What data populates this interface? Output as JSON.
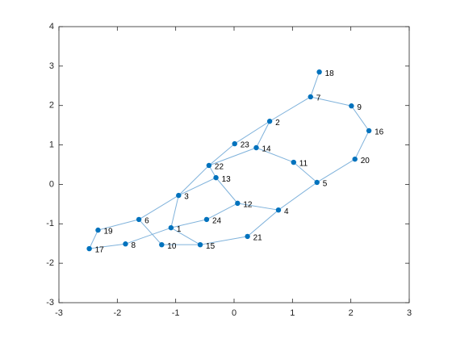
{
  "chart_data": {
    "type": "graph",
    "labels": [
      "1",
      "2",
      "3",
      "4",
      "5",
      "6",
      "7",
      "8",
      "9",
      "10",
      "11",
      "12",
      "13",
      "14",
      "15",
      "16",
      "17",
      "18",
      "19",
      "20",
      "21",
      "22",
      "23",
      "24"
    ],
    "x": [
      -1.08,
      0.61,
      -0.95,
      0.76,
      1.42,
      -1.63,
      1.31,
      -1.86,
      2.01,
      -1.24,
      1.02,
      0.06,
      -0.31,
      0.38,
      -0.58,
      2.31,
      -2.48,
      1.46,
      -2.33,
      2.07,
      0.23,
      -0.43,
      0.01,
      -0.47
    ],
    "y": [
      -1.1,
      1.6,
      -0.28,
      -0.65,
      0.05,
      -0.89,
      2.22,
      -1.51,
      1.99,
      -1.53,
      0.56,
      -0.48,
      0.17,
      0.93,
      -1.53,
      1.36,
      -1.63,
      2.85,
      -1.16,
      0.64,
      -1.32,
      0.48,
      1.03,
      -0.89
    ],
    "edges": [
      [
        18,
        7
      ],
      [
        7,
        9
      ],
      [
        9,
        16
      ],
      [
        16,
        20
      ],
      [
        20,
        5
      ],
      [
        7,
        2
      ],
      [
        2,
        23
      ],
      [
        2,
        14
      ],
      [
        14,
        11
      ],
      [
        11,
        5
      ],
      [
        14,
        22
      ],
      [
        23,
        22
      ],
      [
        22,
        3
      ],
      [
        22,
        13
      ],
      [
        13,
        3
      ],
      [
        13,
        12
      ],
      [
        12,
        4
      ],
      [
        5,
        4
      ],
      [
        4,
        21
      ],
      [
        21,
        15
      ],
      [
        3,
        6
      ],
      [
        6,
        19
      ],
      [
        19,
        17
      ],
      [
        17,
        8
      ],
      [
        8,
        1
      ],
      [
        6,
        10
      ],
      [
        10,
        15
      ],
      [
        1,
        15
      ],
      [
        3,
        1
      ],
      [
        1,
        24
      ],
      [
        24,
        12
      ]
    ],
    "node_color": "#0072bd",
    "edge_color": "#7fb2db",
    "xlim": [
      -3,
      3
    ],
    "ylim": [
      -3,
      4
    ],
    "xticks": [
      -3,
      -2,
      -1,
      0,
      1,
      2,
      3
    ],
    "yticks": [
      -3,
      -2,
      -1,
      0,
      1,
      2,
      3,
      4
    ]
  }
}
